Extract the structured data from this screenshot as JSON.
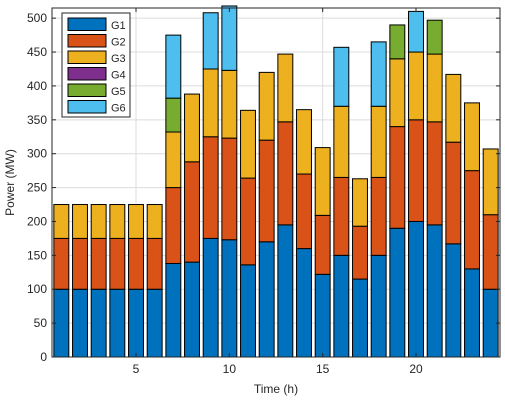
{
  "chart_data": {
    "type": "bar",
    "stacked": true,
    "title": "",
    "xlabel": "Time (h)",
    "ylabel": "Power (MW)",
    "ylim": [
      0,
      515
    ],
    "xlim": [
      0.5,
      24.5
    ],
    "yticks": [
      0,
      50,
      100,
      150,
      200,
      250,
      300,
      350,
      400,
      450,
      500
    ],
    "xticks": [
      5,
      10,
      15,
      20
    ],
    "grid": true,
    "legend_position": "top-left",
    "categories": [
      1,
      2,
      3,
      4,
      5,
      6,
      7,
      8,
      9,
      10,
      11,
      12,
      13,
      14,
      15,
      16,
      17,
      18,
      19,
      20,
      21,
      22,
      23,
      24
    ],
    "series": [
      {
        "name": "G1",
        "color": "#0072BD",
        "values": [
          100,
          100,
          100,
          100,
          100,
          100,
          138,
          140,
          175,
          173,
          136,
          170,
          195,
          160,
          122,
          150,
          115,
          150,
          190,
          200,
          195,
          167,
          130,
          100
        ]
      },
      {
        "name": "G2",
        "color": "#D95319",
        "values": [
          75,
          75,
          75,
          75,
          75,
          75,
          112,
          148,
          150,
          150,
          128,
          150,
          152,
          110,
          87,
          115,
          78,
          115,
          150,
          150,
          152,
          150,
          145,
          110
        ]
      },
      {
        "name": "G3",
        "color": "#EDB120",
        "values": [
          50,
          50,
          50,
          50,
          50,
          50,
          82,
          100,
          100,
          100,
          100,
          100,
          100,
          95,
          100,
          105,
          70,
          105,
          100,
          100,
          100,
          100,
          100,
          97
        ]
      },
      {
        "name": "G4",
        "color": "#7E2F8E",
        "values": [
          0,
          0,
          0,
          0,
          0,
          0,
          0,
          0,
          0,
          0,
          0,
          0,
          0,
          0,
          0,
          0,
          0,
          0,
          0,
          0,
          0,
          0,
          0,
          0
        ]
      },
      {
        "name": "G5",
        "color": "#77AC30",
        "values": [
          0,
          0,
          0,
          0,
          0,
          0,
          50,
          0,
          0,
          0,
          0,
          0,
          0,
          0,
          0,
          0,
          0,
          0,
          50,
          0,
          50,
          0,
          0,
          0
        ]
      },
      {
        "name": "G6",
        "color": "#4DBEEE",
        "values": [
          0,
          0,
          0,
          0,
          0,
          0,
          93,
          0,
          83,
          95,
          0,
          0,
          0,
          0,
          0,
          87,
          0,
          95,
          0,
          60,
          0,
          0,
          0,
          0
        ]
      }
    ]
  }
}
